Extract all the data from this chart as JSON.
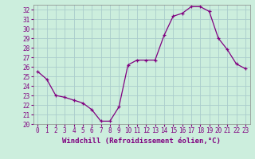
{
  "x": [
    0,
    1,
    2,
    3,
    4,
    5,
    6,
    7,
    8,
    9,
    10,
    11,
    12,
    13,
    14,
    15,
    16,
    17,
    18,
    19,
    20,
    21,
    22,
    23
  ],
  "y": [
    25.5,
    24.7,
    23.0,
    22.8,
    22.5,
    22.2,
    21.5,
    20.3,
    20.3,
    21.8,
    26.2,
    26.7,
    26.7,
    26.7,
    29.3,
    31.3,
    31.6,
    32.3,
    32.3,
    31.8,
    29.0,
    27.8,
    26.3,
    25.8
  ],
  "ylim": [
    20,
    32.5
  ],
  "yticks": [
    20,
    21,
    22,
    23,
    24,
    25,
    26,
    27,
    28,
    29,
    30,
    31,
    32
  ],
  "xticks": [
    0,
    1,
    2,
    3,
    4,
    5,
    6,
    7,
    8,
    9,
    10,
    11,
    12,
    13,
    14,
    15,
    16,
    17,
    18,
    19,
    20,
    21,
    22,
    23
  ],
  "xlabel": "Windchill (Refroidissement éolien,°C)",
  "line_color": "#800080",
  "marker": "+",
  "bg_color": "#cceedd",
  "grid_color": "#aacccc",
  "label_fontsize": 6.5,
  "tick_fontsize": 5.5
}
